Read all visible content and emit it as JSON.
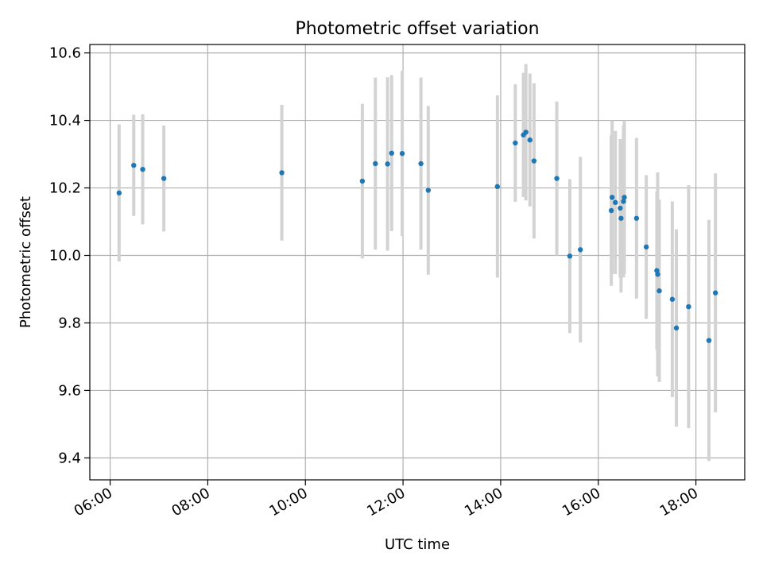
{
  "chart_data": {
    "type": "scatter",
    "title": "Photometric offset variation",
    "xlabel": "UTC time",
    "ylabel": "Photometric offset",
    "xlim": [
      "05:35",
      "19:00"
    ],
    "ylim": [
      9.335,
      10.625
    ],
    "x_ticks": [
      "06:00",
      "08:00",
      "10:00",
      "12:00",
      "14:00",
      "16:00",
      "18:00"
    ],
    "y_ticks": [
      9.4,
      9.6,
      9.8,
      10.0,
      10.2,
      10.4,
      10.6
    ],
    "y_tick_labels": [
      "9.4",
      "9.6",
      "9.8",
      "10.0",
      "10.2",
      "10.4",
      "10.6"
    ],
    "grid": true,
    "marker_color": "#1f77b4",
    "errorbar_color": "#d3d3d3",
    "points": [
      {
        "time": "06:11",
        "y": 10.185,
        "err": 0.203
      },
      {
        "time": "06:29",
        "y": 10.267,
        "err": 0.15
      },
      {
        "time": "06:40",
        "y": 10.255,
        "err": 0.163
      },
      {
        "time": "07:06",
        "y": 10.228,
        "err": 0.157
      },
      {
        "time": "09:31",
        "y": 10.245,
        "err": 0.201
      },
      {
        "time": "11:10",
        "y": 10.22,
        "err": 0.229
      },
      {
        "time": "11:26",
        "y": 10.272,
        "err": 0.255
      },
      {
        "time": "11:41",
        "y": 10.271,
        "err": 0.257
      },
      {
        "time": "11:46",
        "y": 10.303,
        "err": 0.231
      },
      {
        "time": "11:59",
        "y": 10.302,
        "err": 0.245
      },
      {
        "time": "12:22",
        "y": 10.272,
        "err": 0.255
      },
      {
        "time": "12:31",
        "y": 10.193,
        "err": 0.25
      },
      {
        "time": "13:56",
        "y": 10.204,
        "err": 0.27
      },
      {
        "time": "14:18",
        "y": 10.333,
        "err": 0.174
      },
      {
        "time": "14:28",
        "y": 10.357,
        "err": 0.184
      },
      {
        "time": "14:31",
        "y": 10.365,
        "err": 0.202
      },
      {
        "time": "14:36",
        "y": 10.342,
        "err": 0.197
      },
      {
        "time": "14:41",
        "y": 10.28,
        "err": 0.23
      },
      {
        "time": "15:09",
        "y": 10.228,
        "err": 0.228
      },
      {
        "time": "15:25",
        "y": 9.998,
        "err": 0.228
      },
      {
        "time": "15:38",
        "y": 10.017,
        "err": 0.275
      },
      {
        "time": "16:16",
        "y": 10.133,
        "err": 0.223
      },
      {
        "time": "16:17",
        "y": 10.172,
        "err": 0.228
      },
      {
        "time": "16:21",
        "y": 10.157,
        "err": 0.212
      },
      {
        "time": "16:27",
        "y": 10.14,
        "err": 0.205
      },
      {
        "time": "16:28",
        "y": 10.11,
        "err": 0.22
      },
      {
        "time": "16:31",
        "y": 10.16,
        "err": 0.225
      },
      {
        "time": "16:32",
        "y": 10.172,
        "err": 0.228
      },
      {
        "time": "16:47",
        "y": 10.11,
        "err": 0.238
      },
      {
        "time": "16:59",
        "y": 10.025,
        "err": 0.213
      },
      {
        "time": "17:12",
        "y": 9.955,
        "err": 0.235
      },
      {
        "time": "17:13",
        "y": 9.944,
        "err": 0.302
      },
      {
        "time": "17:15",
        "y": 9.895,
        "err": 0.27
      },
      {
        "time": "17:31",
        "y": 9.87,
        "err": 0.29
      },
      {
        "time": "17:36",
        "y": 9.785,
        "err": 0.292
      },
      {
        "time": "17:51",
        "y": 9.848,
        "err": 0.36
      },
      {
        "time": "18:16",
        "y": 9.748,
        "err": 0.357
      },
      {
        "time": "18:24",
        "y": 9.889,
        "err": 0.354
      }
    ]
  }
}
